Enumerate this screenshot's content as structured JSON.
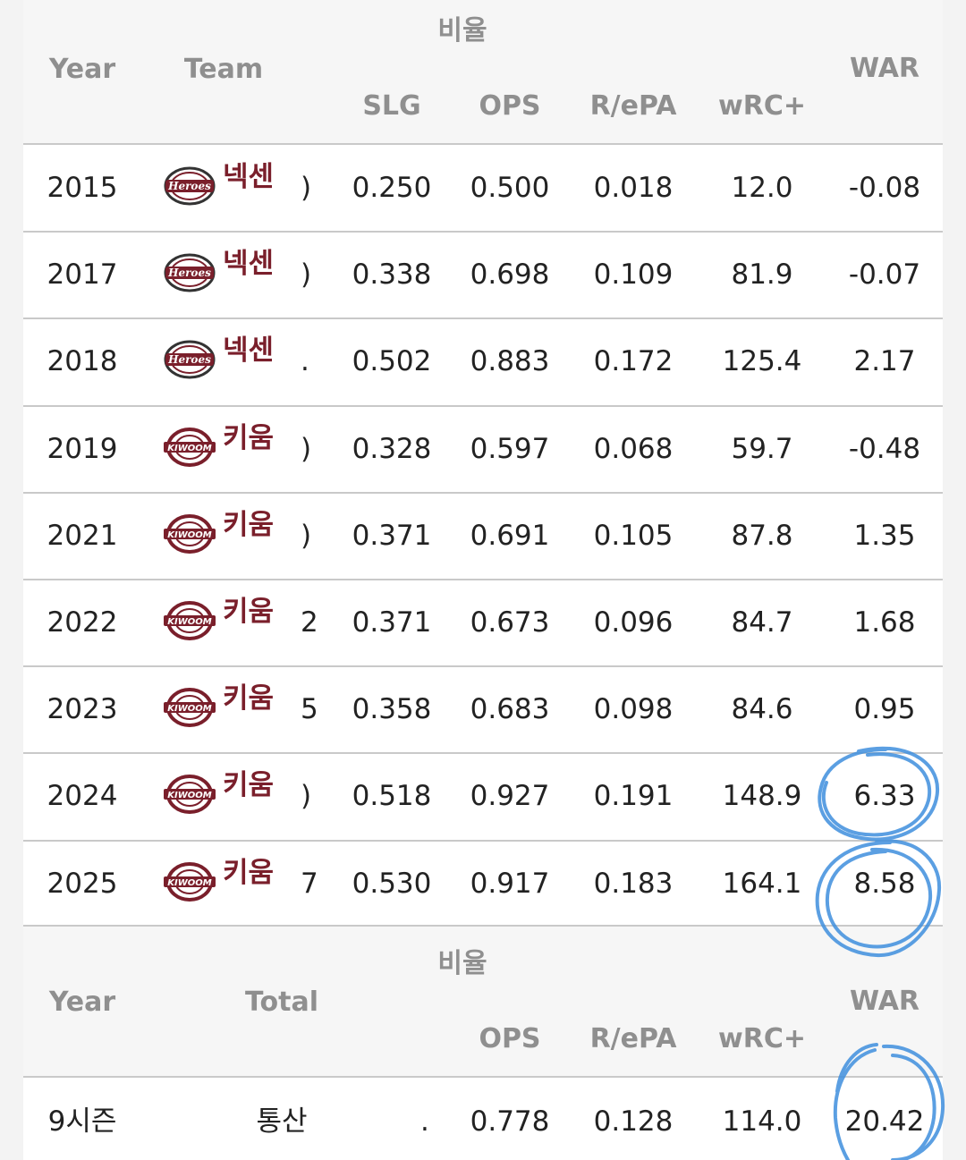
{
  "header": {
    "group_label": "비율",
    "col_year": "Year",
    "col_team": "Team",
    "col_slg": "SLG",
    "col_ops": "OPS",
    "col_repa": "R/ePA",
    "col_wrc": "wRC+",
    "col_war": "WAR"
  },
  "rows": [
    {
      "year": "2015",
      "team": "넥센",
      "logo": "heroes-logo",
      "partial": ")",
      "slg": "0.250",
      "ops": "0.500",
      "repa": "0.018",
      "wrc": "12.0",
      "war": "-0.08"
    },
    {
      "year": "2017",
      "team": "넥센",
      "logo": "heroes-logo",
      "partial": ")",
      "slg": "0.338",
      "ops": "0.698",
      "repa": "0.109",
      "wrc": "81.9",
      "war": "-0.07"
    },
    {
      "year": "2018",
      "team": "넥센",
      "logo": "heroes-logo",
      "partial": ".",
      "slg": "0.502",
      "ops": "0.883",
      "repa": "0.172",
      "wrc": "125.4",
      "war": "2.17"
    },
    {
      "year": "2019",
      "team": "키움",
      "logo": "kiwoom-logo",
      "partial": ")",
      "slg": "0.328",
      "ops": "0.597",
      "repa": "0.068",
      "wrc": "59.7",
      "war": "-0.48"
    },
    {
      "year": "2021",
      "team": "키움",
      "logo": "kiwoom-logo",
      "partial": ")",
      "slg": "0.371",
      "ops": "0.691",
      "repa": "0.105",
      "wrc": "87.8",
      "war": "1.35"
    },
    {
      "year": "2022",
      "team": "키움",
      "logo": "kiwoom-logo",
      "partial": "2",
      "slg": "0.371",
      "ops": "0.673",
      "repa": "0.096",
      "wrc": "84.7",
      "war": "1.68"
    },
    {
      "year": "2023",
      "team": "키움",
      "logo": "kiwoom-logo",
      "partial": "5",
      "slg": "0.358",
      "ops": "0.683",
      "repa": "0.098",
      "wrc": "84.6",
      "war": "0.95"
    },
    {
      "year": "2024",
      "team": "키움",
      "logo": "kiwoom-logo",
      "partial": ")",
      "slg": "0.518",
      "ops": "0.927",
      "repa": "0.191",
      "wrc": "148.9",
      "war": "6.33"
    },
    {
      "year": "2025",
      "team": "키움",
      "logo": "kiwoom-logo",
      "partial": "7",
      "slg": "0.530",
      "ops": "0.917",
      "repa": "0.183",
      "wrc": "164.1",
      "war": "8.58"
    }
  ],
  "totals_header": {
    "group_label": "비율",
    "col_year": "Year",
    "col_total": "Total",
    "col_ops": "OPS",
    "col_repa": "R/ePA",
    "col_wrc": "wRC+",
    "col_war": "WAR"
  },
  "totals": {
    "year": "9시즌",
    "total": "통산",
    "partial": ".",
    "ops": "0.778",
    "repa": "0.128",
    "wrc": "114.0",
    "war": "20.42"
  },
  "colors": {
    "team_text": "#7a1f2b",
    "highlight_circle": "#3f8fde",
    "header_text": "#8f8f8f",
    "grid": "#c9c9c9"
  }
}
